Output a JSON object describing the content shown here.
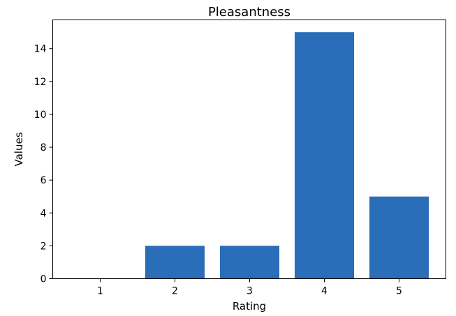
{
  "chart_data": {
    "type": "bar",
    "title": "Pleasantness",
    "xlabel": "Rating",
    "ylabel": "Values",
    "categories": [
      "1",
      "2",
      "3",
      "4",
      "5"
    ],
    "values": [
      0,
      2,
      2,
      15,
      5
    ],
    "ylim": [
      0,
      15.75
    ],
    "yticks": [
      0,
      2,
      4,
      6,
      8,
      10,
      12,
      14
    ],
    "grid": false,
    "legend": "none",
    "bar_color": "#2a6db8"
  }
}
